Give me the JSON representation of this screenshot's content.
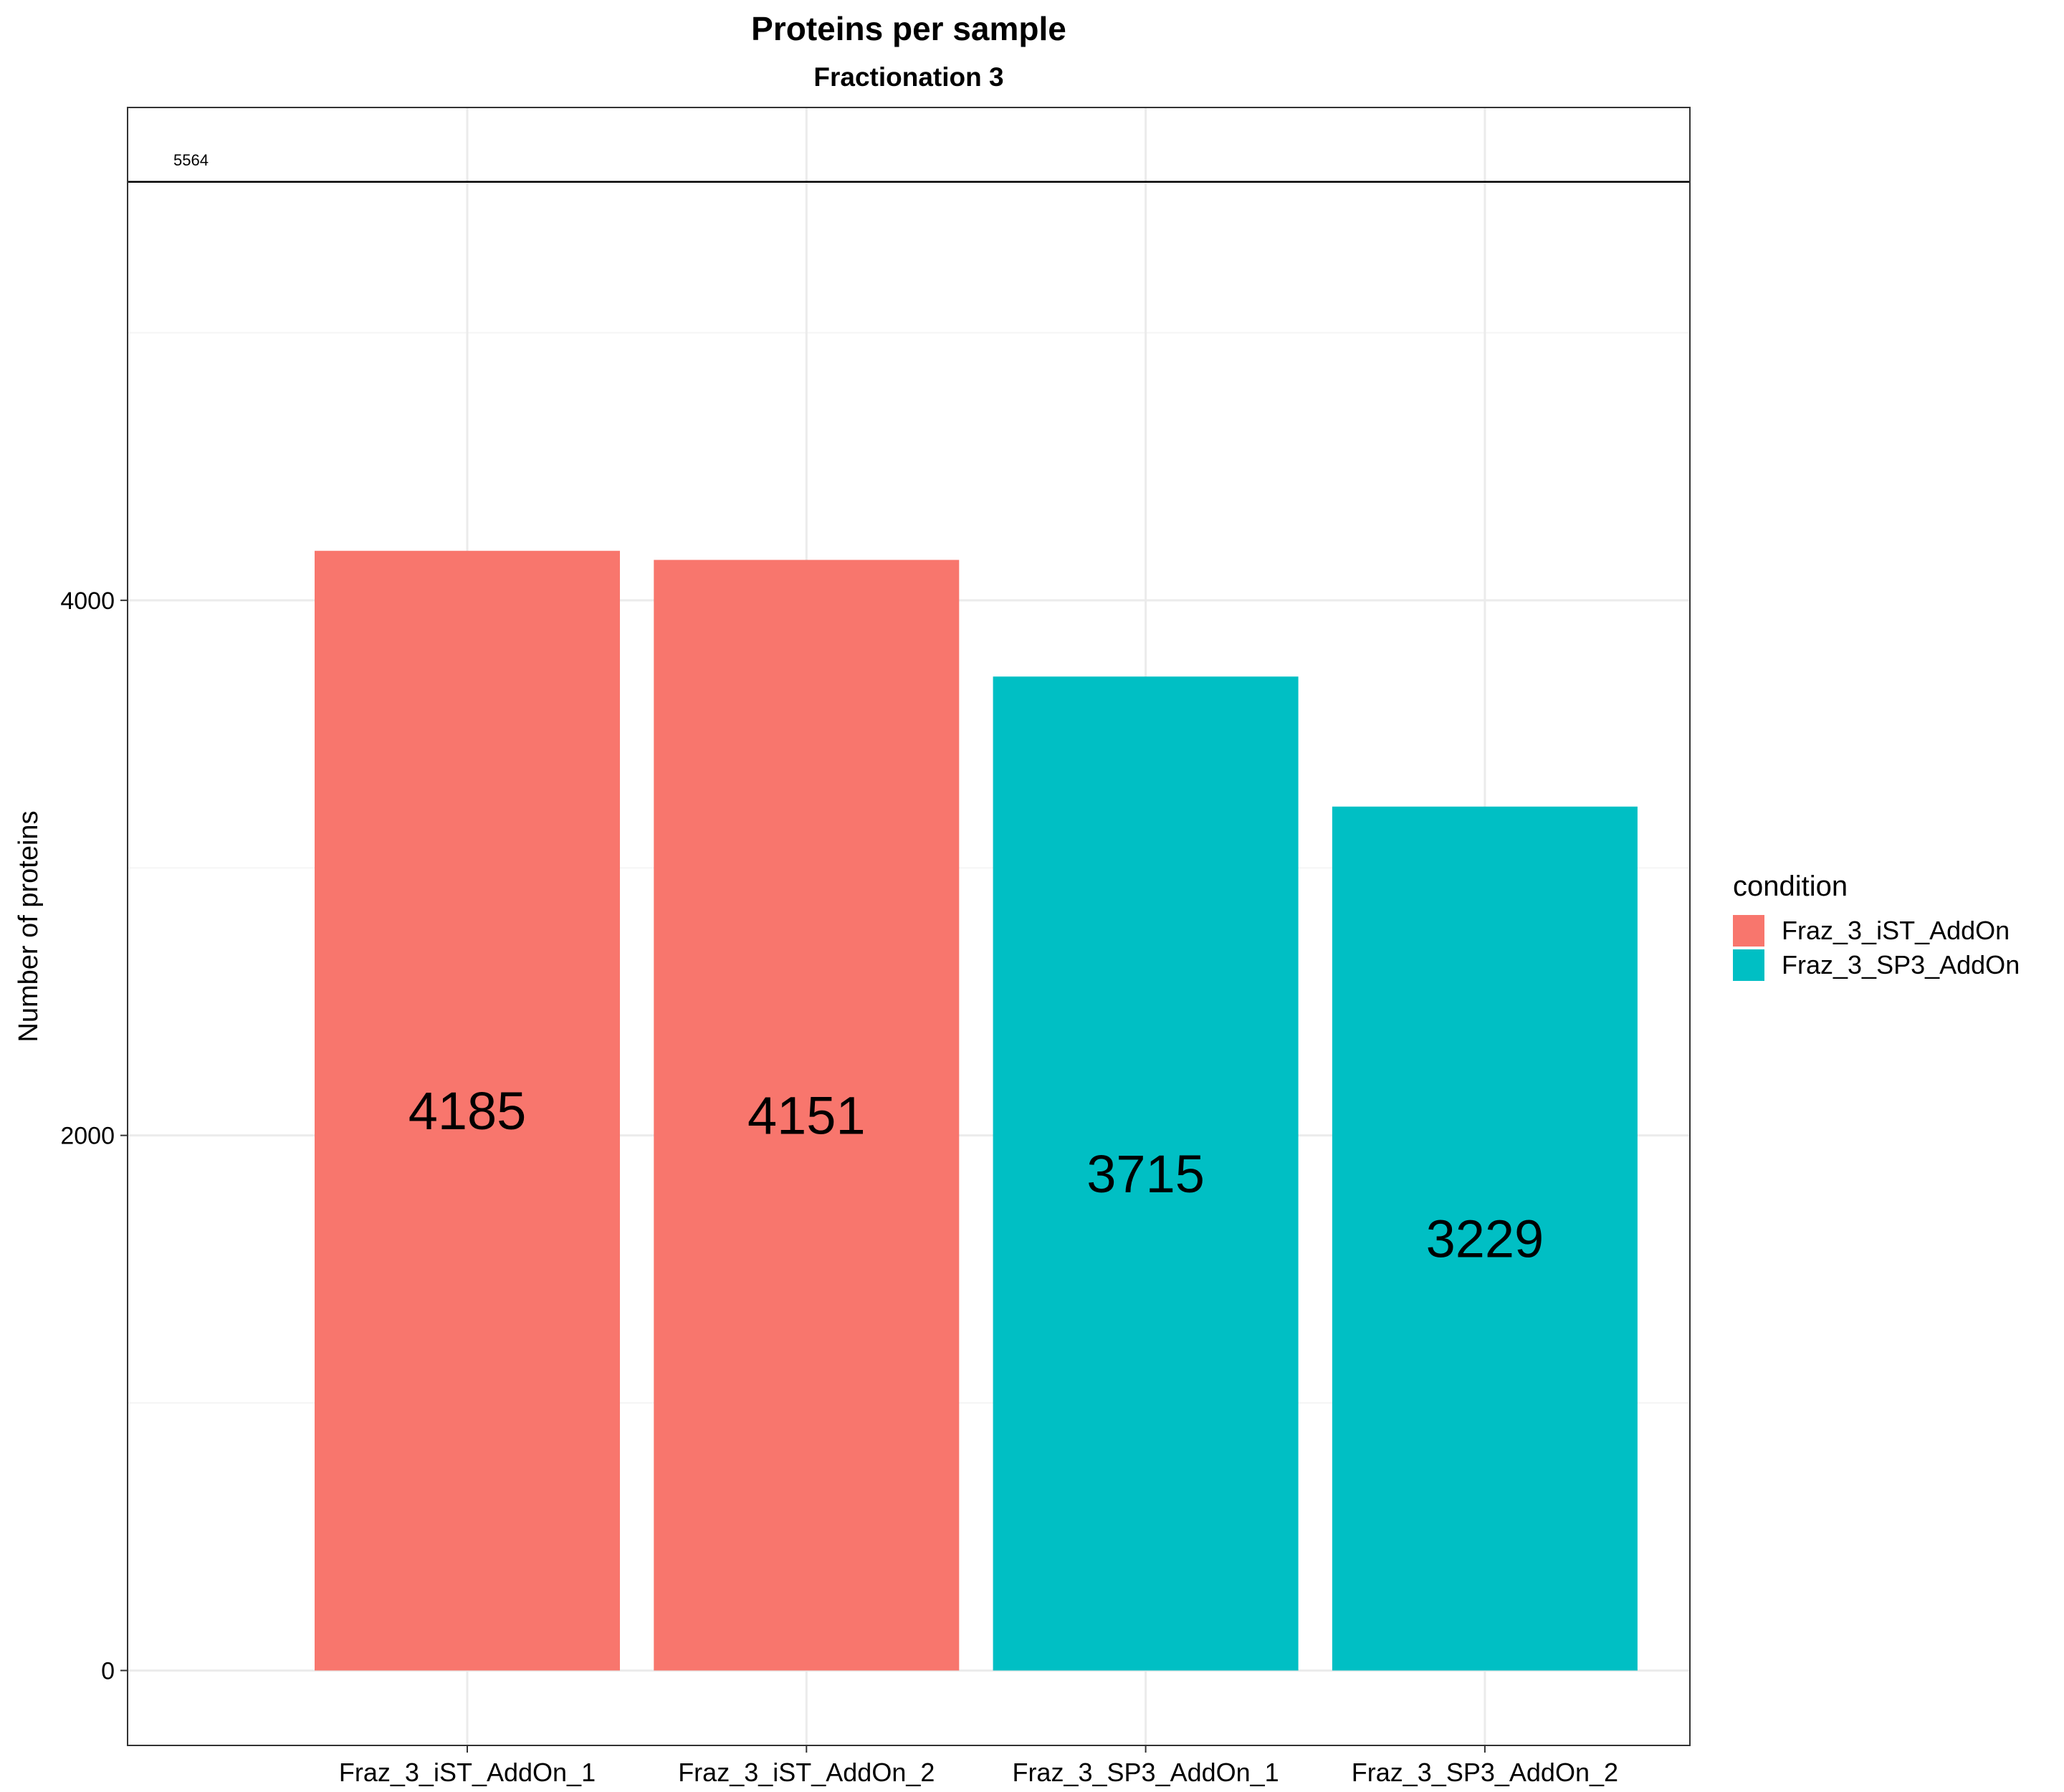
{
  "chart_data": {
    "type": "bar",
    "title": "Proteins per sample",
    "subtitle": "Fractionation 3",
    "xlabel": "",
    "ylabel": "Number of proteins",
    "categories": [
      "Fraz_3_iST_AddOn_1",
      "Fraz_3_iST_AddOn_2",
      "Fraz_3_SP3_AddOn_1",
      "Fraz_3_SP3_AddOn_2"
    ],
    "values": [
      4185,
      4151,
      3715,
      3229
    ],
    "bar_conditions": [
      "Fraz_3_iST_AddOn",
      "Fraz_3_iST_AddOn",
      "Fraz_3_SP3_AddOn",
      "Fraz_3_SP3_AddOn"
    ],
    "data_labels": [
      "4185",
      "4151",
      "3715",
      "3229"
    ],
    "yticks": [
      0,
      2000,
      4000
    ],
    "ytick_labels": [
      "0",
      "2000",
      "4000"
    ],
    "ylim": [
      -280,
      5842
    ],
    "reference_line": {
      "value": 5564,
      "label": "5564"
    },
    "legend": {
      "title": "condition",
      "position": "right",
      "entries": [
        {
          "label": "Fraz_3_iST_AddOn",
          "color": "#F8766D"
        },
        {
          "label": "Fraz_3_SP3_AddOn",
          "color": "#00BFC4"
        }
      ]
    },
    "grid": true
  }
}
